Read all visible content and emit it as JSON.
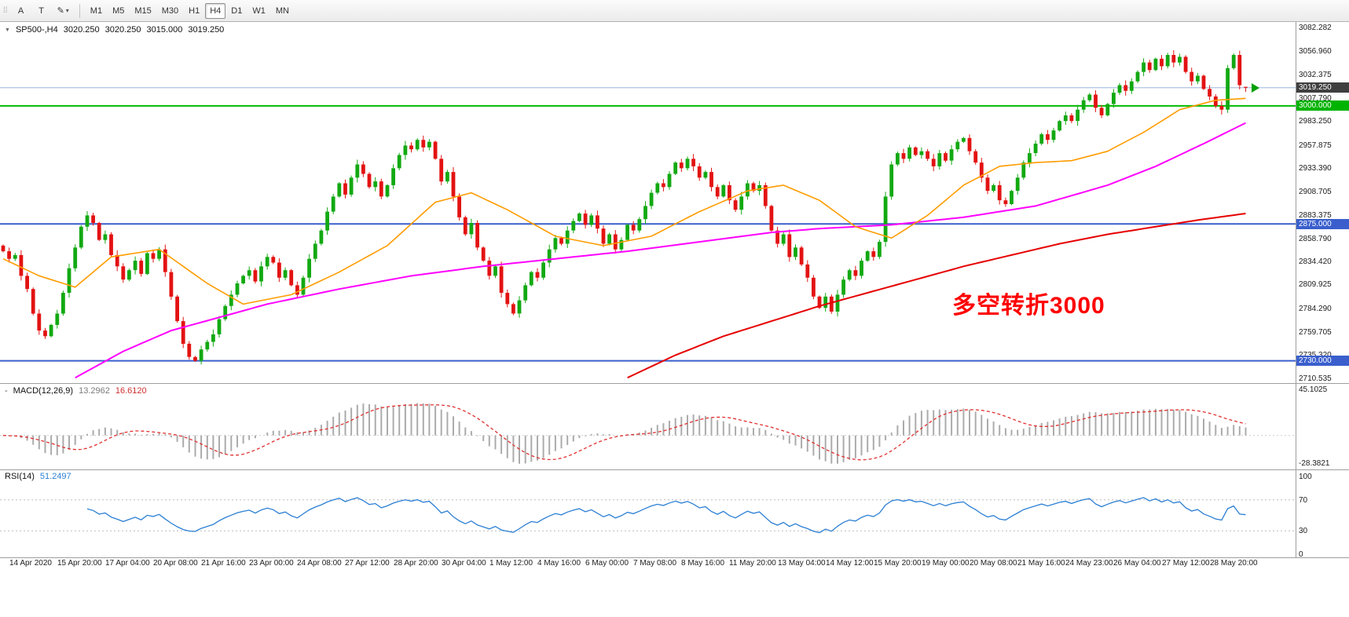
{
  "toolbar": {
    "left_buttons": [
      {
        "label": "A"
      },
      {
        "label": "T"
      }
    ],
    "draw_tool_glyph": "✎",
    "caret_glyph": "▾",
    "timeframes": [
      "M1",
      "M5",
      "M15",
      "M30",
      "H1",
      "H4",
      "D1",
      "W1",
      "MN"
    ],
    "active_timeframe": "H4"
  },
  "symbol_line": {
    "expander_glyph": "▼",
    "symbol": "SP500-,H4",
    "open": "3020.250",
    "high": "3020.250",
    "low": "3015.000",
    "close": "3019.250"
  },
  "annotation": {
    "text": "多空转折3000",
    "color": "#ff0000"
  },
  "price_axis": {
    "ticks": [
      "3082.282",
      "3056.960",
      "3032.375",
      "3007.790",
      "2983.250",
      "2957.875",
      "2933.390",
      "2908.705",
      "2883.375",
      "2858.790",
      "2834.420",
      "2809.925",
      "2784.290",
      "2759.705",
      "2735.320",
      "2710.535"
    ],
    "tags": [
      {
        "label": "3019.250",
        "price": 3019.25,
        "bg": "#3f3f3f"
      },
      {
        "label": "3000.000",
        "price": 3000.0,
        "bg": "#00b300"
      },
      {
        "label": "2875.000",
        "price": 2875.0,
        "bg": "#3a5fcd"
      },
      {
        "label": "2730.000",
        "price": 2730.0,
        "bg": "#3a5fcd"
      }
    ]
  },
  "hlines": [
    {
      "price": 3019.25,
      "color": "#9db6dd",
      "w": 1
    },
    {
      "price": 3000.0,
      "color": "#00bb00",
      "w": 2
    },
    {
      "price": 2875.0,
      "color": "#3a5fcd",
      "w": 2
    },
    {
      "price": 2730.0,
      "color": "#3a5fcd",
      "w": 2
    }
  ],
  "macd_panel": {
    "prefix": "-",
    "label": "MACD(12,26,9)",
    "value_main": "13.2962",
    "value_signal": "16.6120",
    "axis": [
      {
        "label": "45.1025",
        "value": 45.1025
      },
      {
        "label": "-28.3821",
        "value": -28.3821
      }
    ],
    "colors": {
      "histogram": "#ababab",
      "signal": "#e03030"
    }
  },
  "rsi_panel": {
    "label": "RSI(14)",
    "value": "51.2497",
    "axis": [
      {
        "label": "100",
        "value": 100
      },
      {
        "label": "70",
        "value": 70
      },
      {
        "label": "30",
        "value": 30
      },
      {
        "label": "0",
        "value": 0
      }
    ],
    "levels": [
      70,
      30
    ],
    "color": "#2b7fd4"
  },
  "time_axis": {
    "labels": [
      "14 Apr 2020",
      "15 Apr 20:00",
      "17 Apr 04:00",
      "20 Apr 08:00",
      "21 Apr 16:00",
      "23 Apr 00:00",
      "24 Apr 08:00",
      "27 Apr 12:00",
      "28 Apr 20:00",
      "30 Apr 04:00",
      "1 May 12:00",
      "4 May 16:00",
      "6 May 00:00",
      "7 May 08:00",
      "8 May 16:00",
      "11 May 20:00",
      "13 May 04:00",
      "14 May 12:00",
      "15 May 20:00",
      "19 May 00:00",
      "20 May 08:00",
      "21 May 16:00",
      "24 May 23:00",
      "26 May 04:00",
      "27 May 12:00",
      "28 May 20:00"
    ]
  },
  "chart_data": {
    "type": "candlestick",
    "symbol": "SP500-",
    "timeframe": "H4",
    "ylim": [
      2710.535,
      3082.282
    ],
    "first_open": 2852,
    "current_bar": {
      "open": 3020.25,
      "high": 3020.25,
      "low": 3015.0,
      "close": 3019.25
    },
    "closes": [
      2846,
      2838,
      2842,
      2820,
      2806,
      2780,
      2762,
      2756,
      2768,
      2780,
      2802,
      2828,
      2850,
      2872,
      2884,
      2876,
      2858,
      2864,
      2842,
      2830,
      2816,
      2826,
      2836,
      2822,
      2844,
      2838,
      2848,
      2824,
      2798,
      2772,
      2748,
      2734,
      2730,
      2742,
      2750,
      2758,
      2774,
      2788,
      2800,
      2812,
      2820,
      2826,
      2814,
      2830,
      2840,
      2834,
      2818,
      2826,
      2810,
      2800,
      2818,
      2838,
      2854,
      2868,
      2888,
      2904,
      2918,
      2906,
      2924,
      2938,
      2928,
      2914,
      2920,
      2904,
      2916,
      2934,
      2948,
      2958,
      2954,
      2964,
      2956,
      2962,
      2944,
      2920,
      2930,
      2904,
      2882,
      2864,
      2876,
      2850,
      2836,
      2820,
      2830,
      2802,
      2790,
      2780,
      2794,
      2810,
      2824,
      2818,
      2834,
      2848,
      2860,
      2854,
      2868,
      2878,
      2886,
      2874,
      2884,
      2870,
      2854,
      2864,
      2848,
      2858,
      2874,
      2868,
      2880,
      2894,
      2908,
      2918,
      2914,
      2928,
      2940,
      2934,
      2944,
      2936,
      2924,
      2930,
      2914,
      2904,
      2916,
      2900,
      2890,
      2904,
      2918,
      2910,
      2916,
      2894,
      2868,
      2854,
      2864,
      2840,
      2850,
      2832,
      2818,
      2798,
      2786,
      2798,
      2782,
      2800,
      2816,
      2826,
      2820,
      2836,
      2846,
      2840,
      2856,
      2904,
      2938,
      2950,
      2944,
      2956,
      2948,
      2952,
      2944,
      2936,
      2950,
      2942,
      2954,
      2962,
      2966,
      2952,
      2940,
      2924,
      2910,
      2916,
      2900,
      2896,
      2910,
      2924,
      2940,
      2950,
      2960,
      2970,
      2964,
      2974,
      2984,
      2990,
      2984,
      2996,
      3006,
      3012,
      2998,
      2990,
      3002,
      3014,
      3022,
      3016,
      3026,
      3036,
      3046,
      3038,
      3050,
      3042,
      3054,
      3046,
      3052,
      3036,
      3026,
      3032,
      3018,
      3010,
      3000,
      2996,
      3040,
      3054,
      3022,
      3019.25
    ],
    "colors": {
      "up": "#12a912",
      "down": "#e31212"
    },
    "overlays": {
      "ma_fast": {
        "color": "#ff9c00",
        "width": 1.6,
        "points": [
          [
            0,
            2838
          ],
          [
            6,
            2820
          ],
          [
            12,
            2808
          ],
          [
            18,
            2840
          ],
          [
            26,
            2848
          ],
          [
            34,
            2812
          ],
          [
            40,
            2790
          ],
          [
            48,
            2800
          ],
          [
            56,
            2824
          ],
          [
            64,
            2852
          ],
          [
            72,
            2898
          ],
          [
            78,
            2908
          ],
          [
            84,
            2890
          ],
          [
            92,
            2862
          ],
          [
            100,
            2852
          ],
          [
            108,
            2862
          ],
          [
            116,
            2888
          ],
          [
            124,
            2910
          ],
          [
            130,
            2916
          ],
          [
            136,
            2900
          ],
          [
            142,
            2872
          ],
          [
            148,
            2860
          ],
          [
            154,
            2884
          ],
          [
            160,
            2916
          ],
          [
            166,
            2936
          ],
          [
            172,
            2940
          ],
          [
            178,
            2942
          ],
          [
            184,
            2952
          ],
          [
            190,
            2972
          ],
          [
            196,
            2996
          ],
          [
            202,
            3006
          ],
          [
            207,
            3008
          ]
        ]
      },
      "ma_mid": {
        "color": "#ff00ff",
        "width": 2,
        "points": [
          [
            12,
            2712
          ],
          [
            20,
            2740
          ],
          [
            28,
            2762
          ],
          [
            36,
            2776
          ],
          [
            44,
            2790
          ],
          [
            56,
            2806
          ],
          [
            68,
            2820
          ],
          [
            80,
            2830
          ],
          [
            92,
            2838
          ],
          [
            104,
            2846
          ],
          [
            116,
            2856
          ],
          [
            128,
            2866
          ],
          [
            136,
            2870
          ],
          [
            148,
            2874
          ],
          [
            160,
            2882
          ],
          [
            172,
            2894
          ],
          [
            184,
            2916
          ],
          [
            192,
            2936
          ],
          [
            200,
            2960
          ],
          [
            207,
            2982
          ]
        ]
      },
      "ma_slow": {
        "color": "#e60000",
        "width": 2,
        "points": [
          [
            104,
            2712
          ],
          [
            112,
            2736
          ],
          [
            120,
            2756
          ],
          [
            128,
            2772
          ],
          [
            136,
            2788
          ],
          [
            144,
            2802
          ],
          [
            152,
            2816
          ],
          [
            160,
            2830
          ],
          [
            168,
            2842
          ],
          [
            176,
            2854
          ],
          [
            184,
            2864
          ],
          [
            192,
            2872
          ],
          [
            200,
            2880
          ],
          [
            207,
            2886
          ]
        ]
      }
    },
    "indicators": {
      "macd": {
        "fast": 12,
        "slow": 26,
        "signal": 9
      },
      "rsi": {
        "period": 14
      }
    }
  }
}
